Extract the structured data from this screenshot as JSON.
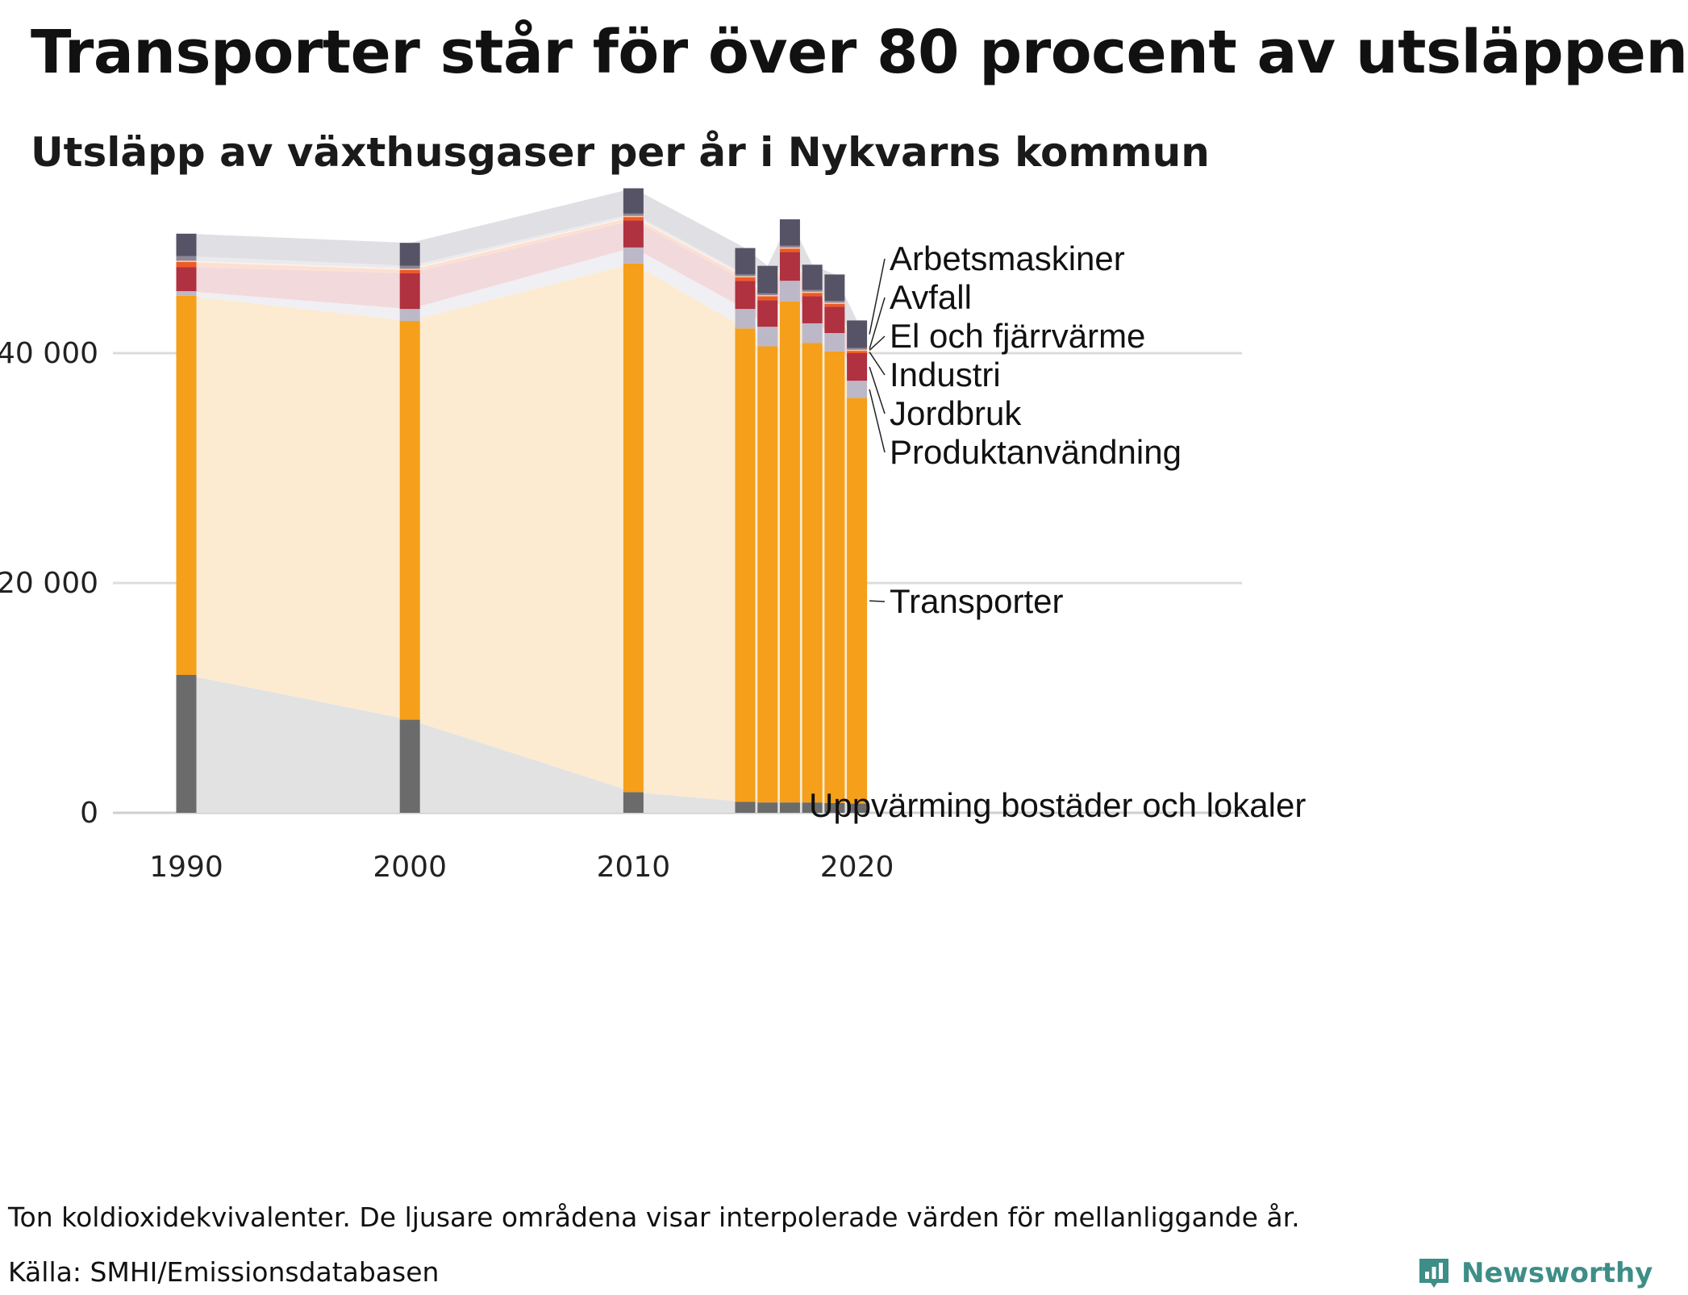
{
  "header": {
    "title": "Transporter står för över 80 procent av utsläppen",
    "subtitle": "Utsläpp av växthusgaser per år i Nykvarns kommun"
  },
  "footer": {
    "note": "Ton koldioxidekvivalenter. De ljusare områdena visar interpolerade värden för mellanliggande år.",
    "source": "Källa: SMHI/Emissionsdatabasen",
    "brand": "Newsworthy",
    "brand_color": "#3e8e88"
  },
  "chart_data": {
    "type": "bar",
    "stacked": true,
    "interpolated_area_between_years": true,
    "years": [
      1990,
      2000,
      2010,
      2015,
      2016,
      2017,
      2018,
      2019,
      2020
    ],
    "x_ticks": [
      "1990",
      "2000",
      "2010",
      "2020"
    ],
    "y_ticks": [
      {
        "value": 0,
        "label": "0"
      },
      {
        "value": 20000,
        "label": "20 000"
      },
      {
        "value": 40000,
        "label": "40 000"
      }
    ],
    "ylim": [
      0,
      56000
    ],
    "grid": "horizontal",
    "legend": "labels at right end of series",
    "series": [
      {
        "name": "Uppvärming bostäder och lokaler",
        "color": "#6b6b6b",
        "area_color": "#e2e2e2",
        "values": [
          12000,
          8100,
          1800,
          950,
          900,
          900,
          900,
          850,
          800
        ]
      },
      {
        "name": "Transporter",
        "color": "#f59f1a",
        "area_color": "#fcebd0",
        "values": [
          33000,
          34700,
          46000,
          41200,
          39700,
          43600,
          40000,
          39300,
          35300
        ]
      },
      {
        "name": "Produktanvändning",
        "color": "#bcb8c7",
        "area_color": "#f0eff3",
        "values": [
          400,
          1050,
          1400,
          1700,
          1700,
          1800,
          1700,
          1600,
          1500
        ]
      },
      {
        "name": "Jordbruk",
        "color": "#b0313f",
        "area_color": "#f2d9dc",
        "values": [
          2100,
          3100,
          2350,
          2450,
          2300,
          2500,
          2350,
          2300,
          2400
        ]
      },
      {
        "name": "Industri",
        "color": "#ee5a25",
        "area_color": "#fbe0d3",
        "values": [
          450,
          300,
          300,
          300,
          350,
          300,
          300,
          250,
          200
        ]
      },
      {
        "name": "El och fjärrvärme",
        "color": "#ffc9a6",
        "area_color": "#fff1e6",
        "values": [
          100,
          100,
          100,
          100,
          100,
          100,
          100,
          100,
          100
        ]
      },
      {
        "name": "Avfall",
        "color": "#8b8796",
        "area_color": "#ebeaee",
        "values": [
          400,
          250,
          200,
          150,
          150,
          150,
          150,
          150,
          150
        ]
      },
      {
        "name": "Arbetsmaskiner",
        "color": "#575366",
        "area_color": "#e0dfe3",
        "values": [
          1950,
          2000,
          2200,
          2300,
          2400,
          2300,
          2200,
          2300,
          2400
        ]
      }
    ]
  }
}
